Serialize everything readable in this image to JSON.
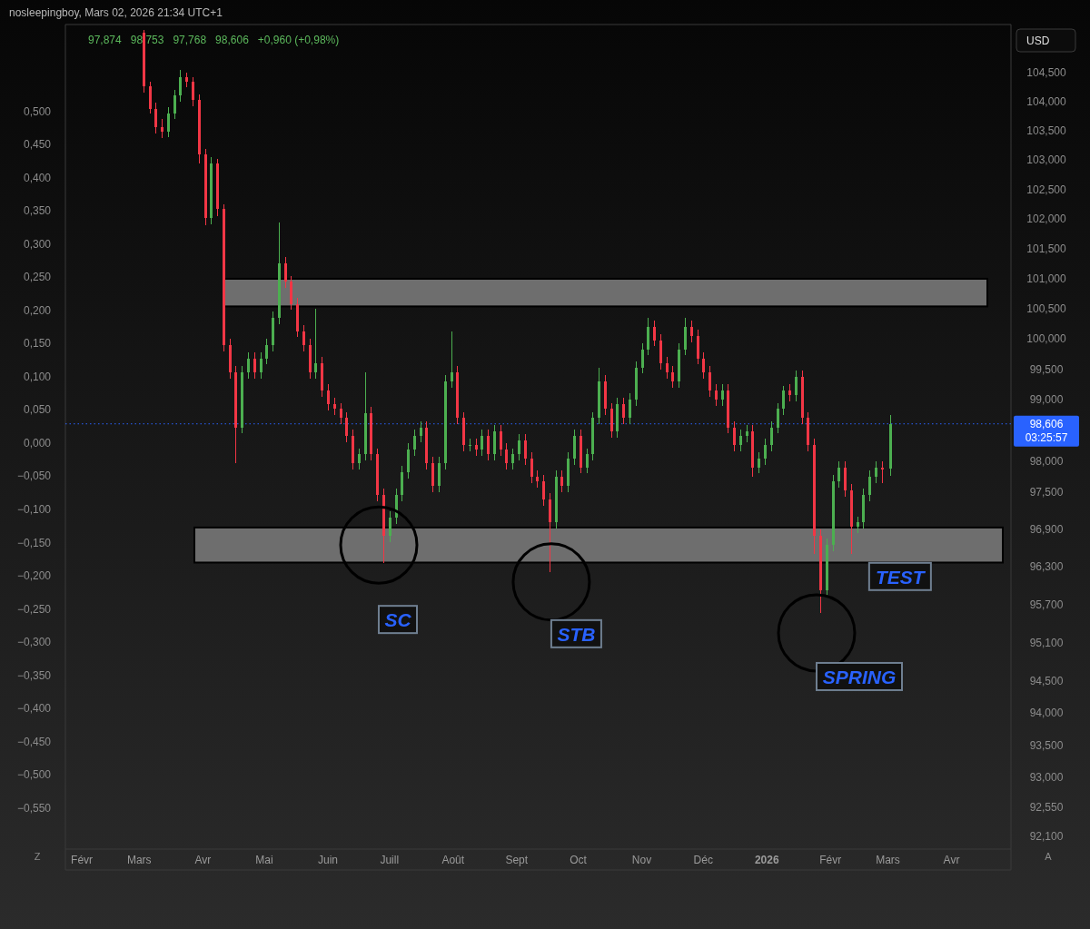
{
  "chart_data": {
    "type": "candlestick",
    "title": "nosleepingboy, Mars 02, 2026 21:34 UTC+1",
    "subtitle": "97,874   98,753   97,768   98,606   +0,960 (+0,98%)",
    "ylabel": "USD",
    "log": true,
    "xlim": [
      "2025-01-24",
      "2026-04-30"
    ],
    "xticks": [
      {
        "value": "2025-02-01",
        "label": "Févr"
      },
      {
        "value": "2025-03-01",
        "label": "Mars"
      },
      {
        "value": "2025-04-01",
        "label": "Avr"
      },
      {
        "value": "2025-05-01",
        "label": "Mai"
      },
      {
        "value": "2025-06-01",
        "label": "Juin"
      },
      {
        "value": "2025-07-01",
        "label": "Juill"
      },
      {
        "value": "2025-08-01",
        "label": "Août"
      },
      {
        "value": "2025-09-01",
        "label": "Sept"
      },
      {
        "value": "2025-10-01",
        "label": "Oct"
      },
      {
        "value": "2025-11-01",
        "label": "Nov"
      },
      {
        "value": "2025-12-01",
        "label": "Déc"
      },
      {
        "value": "2026-01-01",
        "label": "2026"
      },
      {
        "value": "2026-02-01",
        "label": "Févr"
      },
      {
        "value": "2026-03-01",
        "label": "Mars"
      },
      {
        "value": "2026-04-01",
        "label": "Avr"
      }
    ],
    "ylim": [
      91.91,
      105.29
    ],
    "yticks": [
      {
        "value": 92.1,
        "label": "92,100"
      },
      {
        "value": 92.55,
        "label": "92,550"
      },
      {
        "value": 93,
        "label": "93,000"
      },
      {
        "value": 93.5,
        "label": "93,500"
      },
      {
        "value": 94,
        "label": "94,000"
      },
      {
        "value": 94.5,
        "label": "94,500"
      },
      {
        "value": 95.1,
        "label": "95,100"
      },
      {
        "value": 95.7,
        "label": "95,700"
      },
      {
        "value": 96.3,
        "label": "96,300"
      },
      {
        "value": 96.9,
        "label": "96,900"
      },
      {
        "value": 97.5,
        "label": "97,500"
      },
      {
        "value": 98,
        "label": "98,000"
      },
      {
        "value": 99,
        "label": "99,000"
      },
      {
        "value": 99.5,
        "label": "99,500"
      },
      {
        "value": 100,
        "label": "100,000"
      },
      {
        "value": 100.5,
        "label": "100,500"
      },
      {
        "value": 101,
        "label": "101,000"
      },
      {
        "value": 101.5,
        "label": "101,500"
      },
      {
        "value": 102,
        "label": "102,000"
      },
      {
        "value": 102.5,
        "label": "102,500"
      },
      {
        "value": 103,
        "label": "103,000"
      },
      {
        "value": 103.5,
        "label": "103,500"
      },
      {
        "value": 104,
        "label": "104,000"
      },
      {
        "value": 104.5,
        "label": "104,500"
      }
    ],
    "y2lim": [
      -0.612,
      0.627
    ],
    "y2ticks": [
      {
        "value": -0.55,
        "label": "−0,550"
      },
      {
        "value": -0.5,
        "label": "−0,500"
      },
      {
        "value": -0.45,
        "label": "−0,450"
      },
      {
        "value": -0.4,
        "label": "−0,400"
      },
      {
        "value": -0.35,
        "label": "−0,350"
      },
      {
        "value": -0.3,
        "label": "−0,300"
      },
      {
        "value": -0.25,
        "label": "−0,250"
      },
      {
        "value": -0.2,
        "label": "−0,200"
      },
      {
        "value": -0.15,
        "label": "−0,150"
      },
      {
        "value": -0.1,
        "label": "−0,100"
      },
      {
        "value": -0.05,
        "label": "−0,050"
      },
      {
        "value": 0,
        "label": "0,000"
      },
      {
        "value": 0.05,
        "label": "0,050"
      },
      {
        "value": 0.1,
        "label": "0,100"
      },
      {
        "value": 0.15,
        "label": "0,150"
      },
      {
        "value": 0.2,
        "label": "0,200"
      },
      {
        "value": 0.25,
        "label": "0,250"
      },
      {
        "value": 0.3,
        "label": "0,300"
      },
      {
        "value": 0.35,
        "label": "0,350"
      },
      {
        "value": 0.4,
        "label": "0,400"
      },
      {
        "value": 0.45,
        "label": "0,450"
      },
      {
        "value": 0.5,
        "label": "0,500"
      }
    ],
    "x": [
      "2025-03-03",
      "2025-03-06",
      "2025-03-09",
      "2025-03-12",
      "2025-03-15",
      "2025-03-18",
      "2025-03-21",
      "2025-03-24",
      "2025-03-27",
      "2025-03-30",
      "2025-04-02",
      "2025-04-05",
      "2025-04-08",
      "2025-04-11",
      "2025-04-14",
      "2025-04-17",
      "2025-04-20",
      "2025-04-23",
      "2025-04-26",
      "2025-04-29",
      "2025-05-02",
      "2025-05-05",
      "2025-05-08",
      "2025-05-11",
      "2025-05-14",
      "2025-05-17",
      "2025-05-20",
      "2025-05-23",
      "2025-05-26",
      "2025-05-29",
      "2025-06-01",
      "2025-06-04",
      "2025-06-07",
      "2025-06-10",
      "2025-06-13",
      "2025-06-16",
      "2025-06-19",
      "2025-06-22",
      "2025-06-25",
      "2025-06-28",
      "2025-07-01",
      "2025-07-04",
      "2025-07-07",
      "2025-07-10",
      "2025-07-13",
      "2025-07-16",
      "2025-07-19",
      "2025-07-22",
      "2025-07-25",
      "2025-07-28",
      "2025-07-31",
      "2025-08-03",
      "2025-08-06",
      "2025-08-09",
      "2025-08-12",
      "2025-08-15",
      "2025-08-18",
      "2025-08-21",
      "2025-08-24",
      "2025-08-27",
      "2025-08-30",
      "2025-09-02",
      "2025-09-05",
      "2025-09-08",
      "2025-09-11",
      "2025-09-14",
      "2025-09-17",
      "2025-09-20",
      "2025-09-23",
      "2025-09-26",
      "2025-09-29",
      "2025-10-02",
      "2025-10-05",
      "2025-10-08",
      "2025-10-11",
      "2025-10-14",
      "2025-10-17",
      "2025-10-20",
      "2025-10-23",
      "2025-10-26",
      "2025-10-29",
      "2025-11-01",
      "2025-11-04",
      "2025-11-07",
      "2025-11-10",
      "2025-11-13",
      "2025-11-16",
      "2025-11-19",
      "2025-11-22",
      "2025-11-25",
      "2025-11-28",
      "2025-12-01",
      "2025-12-04",
      "2025-12-07",
      "2025-12-10",
      "2025-12-13",
      "2025-12-16",
      "2025-12-19",
      "2025-12-22",
      "2025-12-25",
      "2025-12-28",
      "2025-12-31",
      "2026-01-03",
      "2026-01-06",
      "2026-01-09",
      "2026-01-12",
      "2026-01-15",
      "2026-01-18",
      "2026-01-21",
      "2026-01-24",
      "2026-01-27",
      "2026-01-30",
      "2026-02-02",
      "2026-02-05",
      "2026-02-08",
      "2026-02-11",
      "2026-02-14",
      "2026-02-17",
      "2026-02-20",
      "2026-02-23",
      "2026-02-26",
      "2026-03-02"
    ],
    "ohlc": [
      [
        105.2,
        105.25,
        104.15,
        104.26
      ],
      [
        104.26,
        104.35,
        103.8,
        103.88
      ],
      [
        103.88,
        103.98,
        103.45,
        103.56
      ],
      [
        103.56,
        103.7,
        103.38,
        103.48
      ],
      [
        103.48,
        103.9,
        103.4,
        103.8
      ],
      [
        103.8,
        104.2,
        103.7,
        104.11
      ],
      [
        104.11,
        104.55,
        104.0,
        104.42
      ],
      [
        104.42,
        104.5,
        104.25,
        104.34
      ],
      [
        104.34,
        104.42,
        103.93,
        104.03
      ],
      [
        104.03,
        104.12,
        102.95,
        103.1
      ],
      [
        103.1,
        103.2,
        101.9,
        102.02
      ],
      [
        102.02,
        103.05,
        101.92,
        102.94
      ],
      [
        102.94,
        103.02,
        102.05,
        102.17
      ],
      [
        102.17,
        102.25,
        99.8,
        99.9
      ],
      [
        99.9,
        100.0,
        99.35,
        99.45
      ],
      [
        99.45,
        99.55,
        97.97,
        98.55
      ],
      [
        98.55,
        99.55,
        98.45,
        99.45
      ],
      [
        99.45,
        99.78,
        99.35,
        99.68
      ],
      [
        99.68,
        99.78,
        99.35,
        99.45
      ],
      [
        99.45,
        99.78,
        99.35,
        99.68
      ],
      [
        99.68,
        100.0,
        99.58,
        99.9
      ],
      [
        99.9,
        100.45,
        99.8,
        100.35
      ],
      [
        100.35,
        101.95,
        100.25,
        101.26
      ],
      [
        101.26,
        101.36,
        100.85,
        100.95
      ],
      [
        100.95,
        101.05,
        100.48,
        100.58
      ],
      [
        100.58,
        100.68,
        100.03,
        100.13
      ],
      [
        100.13,
        100.23,
        99.8,
        99.9
      ],
      [
        99.9,
        100.0,
        99.35,
        99.45
      ],
      [
        99.45,
        100.5,
        99.35,
        99.6
      ],
      [
        99.6,
        99.7,
        99.05,
        99.15
      ],
      [
        99.15,
        99.25,
        98.83,
        98.93
      ],
      [
        98.93,
        99.03,
        98.75,
        98.85
      ],
      [
        98.85,
        98.95,
        98.6,
        98.7
      ],
      [
        98.7,
        98.8,
        98.31,
        98.41
      ],
      [
        98.41,
        98.51,
        97.87,
        97.97
      ],
      [
        97.97,
        98.21,
        97.87,
        98.11
      ],
      [
        98.11,
        99.45,
        98.01,
        98.78
      ],
      [
        98.78,
        98.88,
        98.01,
        98.11
      ],
      [
        98.11,
        98.21,
        97.35,
        97.45
      ],
      [
        97.45,
        97.55,
        96.36,
        96.8
      ],
      [
        96.8,
        97.19,
        96.7,
        97.09
      ],
      [
        97.09,
        97.55,
        96.99,
        97.45
      ],
      [
        97.45,
        97.92,
        97.35,
        97.82
      ],
      [
        97.82,
        98.29,
        97.72,
        98.19
      ],
      [
        98.19,
        98.51,
        98.09,
        98.41
      ],
      [
        98.41,
        98.65,
        98.31,
        98.55
      ],
      [
        98.55,
        98.65,
        97.87,
        97.97
      ],
      [
        97.97,
        98.07,
        97.5,
        97.6
      ],
      [
        97.6,
        98.07,
        97.5,
        97.97
      ],
      [
        97.97,
        99.4,
        97.87,
        99.3
      ],
      [
        99.3,
        100.13,
        99.2,
        99.45
      ],
      [
        99.45,
        99.55,
        98.6,
        98.7
      ],
      [
        98.7,
        98.8,
        98.16,
        98.26
      ],
      [
        98.26,
        98.36,
        98.16,
        98.26
      ],
      [
        98.26,
        98.36,
        98.09,
        98.19
      ],
      [
        98.19,
        98.51,
        98.09,
        98.41
      ],
      [
        98.41,
        98.51,
        98.01,
        98.11
      ],
      [
        98.11,
        98.58,
        98.01,
        98.48
      ],
      [
        98.48,
        98.58,
        98.09,
        98.19
      ],
      [
        98.19,
        98.29,
        97.87,
        97.97
      ],
      [
        97.97,
        98.21,
        97.87,
        98.11
      ],
      [
        98.11,
        98.44,
        98.01,
        98.34
      ],
      [
        98.34,
        98.44,
        97.94,
        98.04
      ],
      [
        98.04,
        98.14,
        97.65,
        97.75
      ],
      [
        97.75,
        97.85,
        97.57,
        97.67
      ],
      [
        97.67,
        97.77,
        97.28,
        97.38
      ],
      [
        97.38,
        97.48,
        96.22,
        97.01
      ],
      [
        97.01,
        97.85,
        96.91,
        97.75
      ],
      [
        97.75,
        97.85,
        97.5,
        97.6
      ],
      [
        97.6,
        98.14,
        97.5,
        98.04
      ],
      [
        98.04,
        98.51,
        97.94,
        98.41
      ],
      [
        98.41,
        98.51,
        97.8,
        97.9
      ],
      [
        97.9,
        98.21,
        97.8,
        98.11
      ],
      [
        98.11,
        98.8,
        98.01,
        98.7
      ],
      [
        98.7,
        99.53,
        98.6,
        99.3
      ],
      [
        99.3,
        99.4,
        98.75,
        98.85
      ],
      [
        98.85,
        98.95,
        98.38,
        98.48
      ],
      [
        98.48,
        99.03,
        98.38,
        98.93
      ],
      [
        98.93,
        99.03,
        98.6,
        98.7
      ],
      [
        98.7,
        99.1,
        98.6,
        99.0
      ],
      [
        99.0,
        99.63,
        98.9,
        99.53
      ],
      [
        99.53,
        99.93,
        99.43,
        99.83
      ],
      [
        99.83,
        100.35,
        99.73,
        100.2
      ],
      [
        100.2,
        100.3,
        99.88,
        99.98
      ],
      [
        99.98,
        100.08,
        99.5,
        99.6
      ],
      [
        99.6,
        99.7,
        99.35,
        99.45
      ],
      [
        99.45,
        99.55,
        99.2,
        99.3
      ],
      [
        99.3,
        99.93,
        99.2,
        99.83
      ],
      [
        99.83,
        100.35,
        99.73,
        100.2
      ],
      [
        100.2,
        100.3,
        99.95,
        100.05
      ],
      [
        100.05,
        100.15,
        99.58,
        99.68
      ],
      [
        99.68,
        99.78,
        99.35,
        99.45
      ],
      [
        99.45,
        99.55,
        99.05,
        99.15
      ],
      [
        99.15,
        99.25,
        98.9,
        99.0
      ],
      [
        99.0,
        99.25,
        98.9,
        99.15
      ],
      [
        99.15,
        99.25,
        98.45,
        98.55
      ],
      [
        98.55,
        98.65,
        98.16,
        98.26
      ],
      [
        98.26,
        98.51,
        98.16,
        98.41
      ],
      [
        98.41,
        98.58,
        98.31,
        98.48
      ],
      [
        98.48,
        98.58,
        97.75,
        97.9
      ],
      [
        97.9,
        98.14,
        97.8,
        98.04
      ],
      [
        98.04,
        98.36,
        97.94,
        98.26
      ],
      [
        98.26,
        98.65,
        98.16,
        98.55
      ],
      [
        98.55,
        98.95,
        98.45,
        98.85
      ],
      [
        98.85,
        99.23,
        98.75,
        99.15
      ],
      [
        99.15,
        99.25,
        98.98,
        99.08
      ],
      [
        99.08,
        99.48,
        98.98,
        99.38
      ],
      [
        99.38,
        99.48,
        98.6,
        98.7
      ],
      [
        98.7,
        98.8,
        98.16,
        98.26
      ],
      [
        98.26,
        98.36,
        96.51,
        96.8
      ],
      [
        96.8,
        96.9,
        95.57,
        95.93
      ],
      [
        95.93,
        96.75,
        95.83,
        96.65
      ],
      [
        96.65,
        97.77,
        96.55,
        97.67
      ],
      [
        97.67,
        98.0,
        97.57,
        97.9
      ],
      [
        97.9,
        98.0,
        97.43,
        97.53
      ],
      [
        97.53,
        97.63,
        96.51,
        96.94
      ],
      [
        96.94,
        97.11,
        96.84,
        97.01
      ],
      [
        97.01,
        97.55,
        96.91,
        97.45
      ],
      [
        97.45,
        97.85,
        97.35,
        97.75
      ],
      [
        97.75,
        98.0,
        97.65,
        97.9
      ],
      [
        97.9,
        98.0,
        97.65,
        97.87
      ],
      [
        97.874,
        98.753,
        97.768,
        98.606
      ]
    ],
    "bands": [
      {
        "axis": "y",
        "from": 100.54,
        "to": 101.0,
        "color": "#6e6e6e"
      },
      {
        "axis": "y",
        "from": 96.37,
        "to": 96.93,
        "color": "#6e6e6e"
      }
    ],
    "ref_lines": [
      {
        "axis": "y",
        "value": 98.606,
        "label": "98,606\n03:25:57",
        "color": "#2962ff",
        "line_style": "dotted"
      }
    ],
    "annotations": [
      {
        "text": "SC",
        "x": "2025-06-28",
        "y": 96.36
      },
      {
        "text": "STB",
        "x": "2025-09-17",
        "y": 96.22
      },
      {
        "text": "SPRING",
        "x": "2026-01-27",
        "y": 95.57
      },
      {
        "text": "TEST",
        "x": "2026-02-11",
        "y": 96.51
      },
      "Z",
      "A"
    ]
  }
}
